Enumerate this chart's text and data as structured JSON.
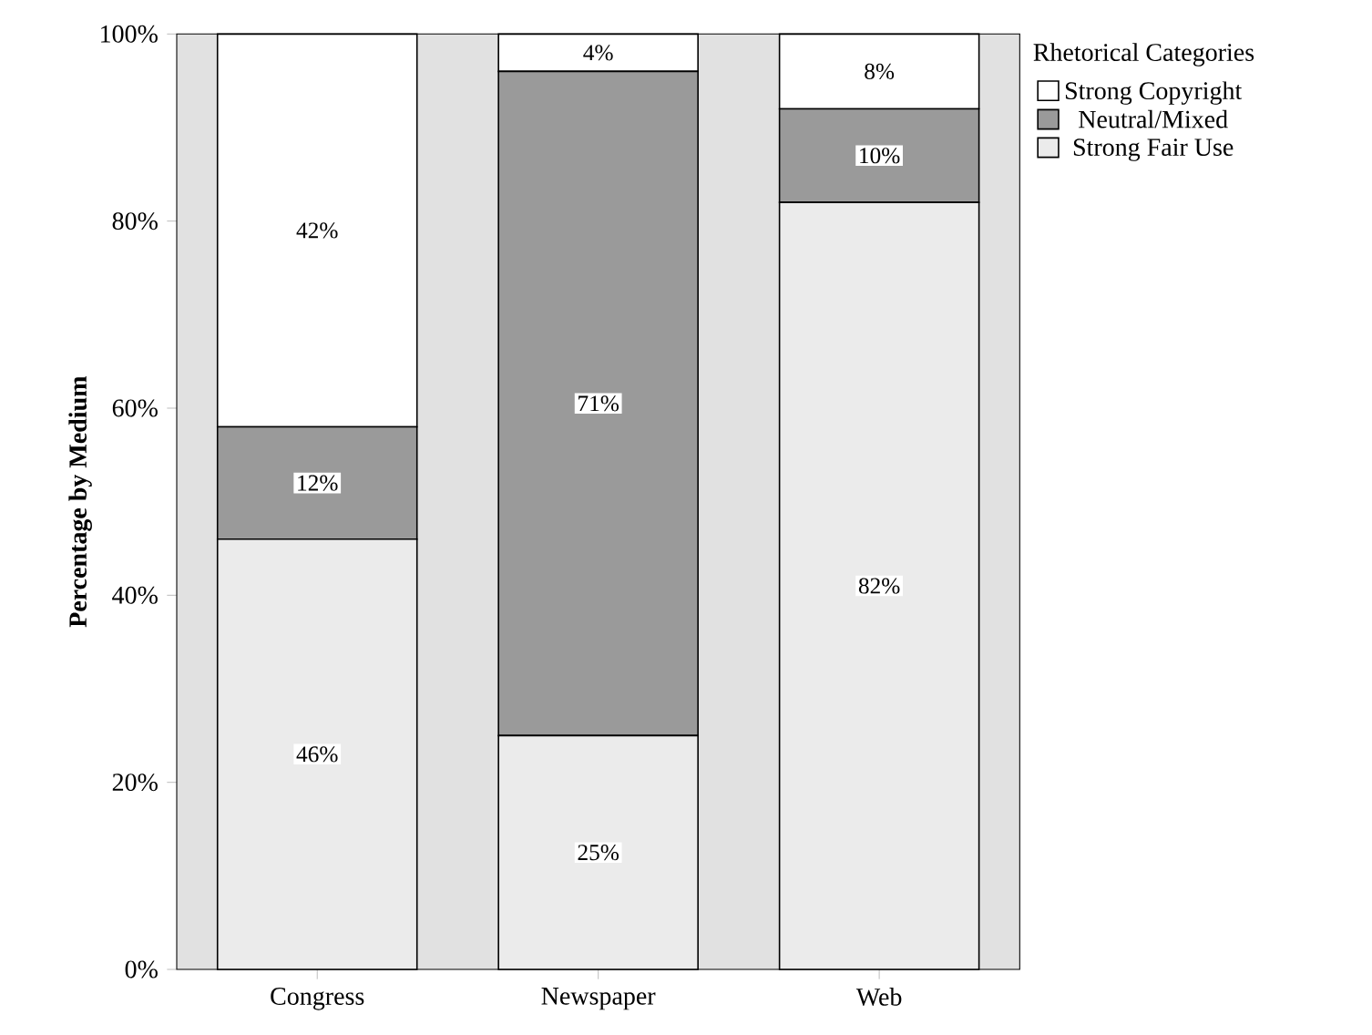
{
  "chart_data": {
    "type": "bar",
    "stacked": true,
    "categories": [
      "Congress",
      "Newspaper",
      "Web"
    ],
    "ylabel": "Percentage by Medium",
    "legend_title": "Rhetorical Categories",
    "legend": "top right",
    "ylim": [
      0,
      100
    ],
    "yticks": [
      {
        "value": 0,
        "label": "0%"
      },
      {
        "value": 20,
        "label": "20%"
      },
      {
        "value": 40,
        "label": "40%"
      },
      {
        "value": 60,
        "label": "60%"
      },
      {
        "value": 80,
        "label": "80%"
      },
      {
        "value": 100,
        "label": "100%"
      }
    ],
    "series": [
      {
        "name": "Strong Fair Use",
        "color": "#ebebeb",
        "values": [
          46,
          25,
          82
        ],
        "value_labels": [
          "46%",
          "25%",
          "82%"
        ]
      },
      {
        "name": "Neutral/Mixed",
        "color": "#9a9a9a",
        "values": [
          12,
          71,
          10
        ],
        "value_labels": [
          "12%",
          "71%",
          "10%"
        ]
      },
      {
        "name": "Strong Copyright",
        "color": "#ffffff",
        "values": [
          42,
          4,
          8
        ],
        "value_labels": [
          "42%",
          "4%",
          "8%"
        ]
      }
    ]
  }
}
